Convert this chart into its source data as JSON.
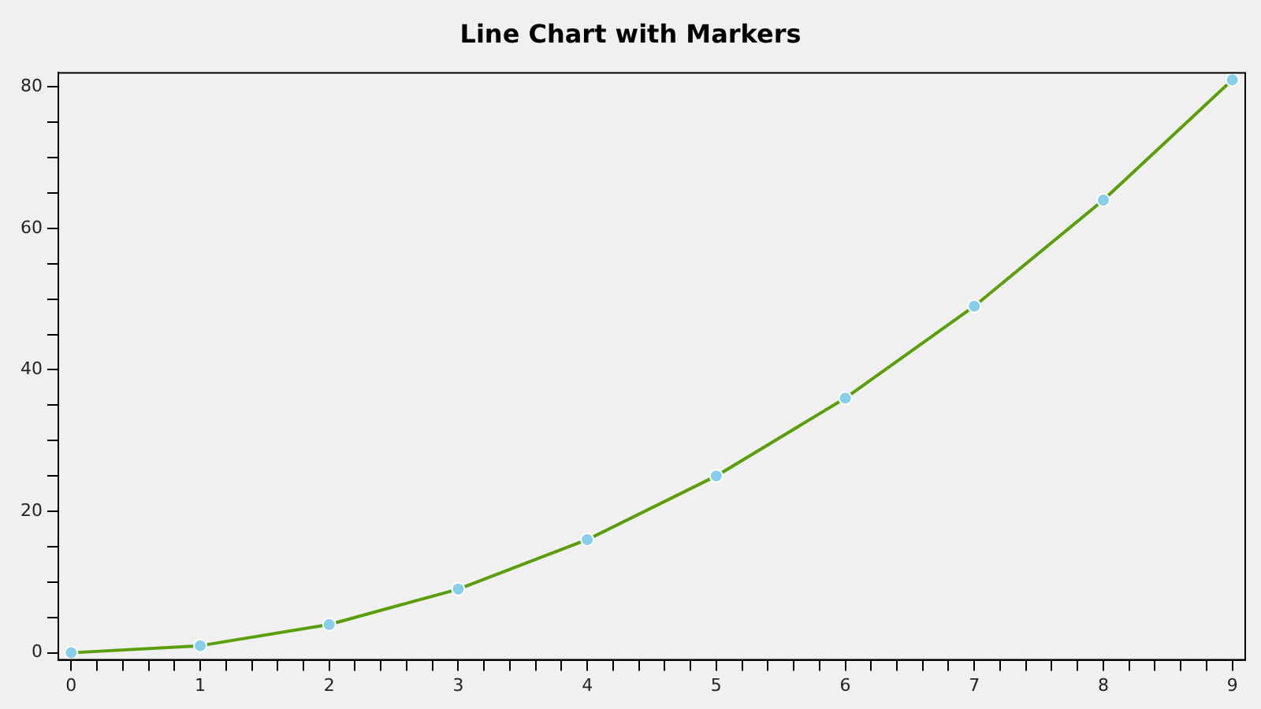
{
  "chart_data": {
    "type": "line",
    "title": "Line Chart with Markers",
    "x": [
      0,
      1,
      2,
      3,
      4,
      5,
      6,
      7,
      8,
      9
    ],
    "series": [
      {
        "color": "#5a9e0a",
        "colors": [
          "#87ceeb",
          "#87ceeb",
          "#87ceeb",
          "#87ceeb",
          "#87ceeb",
          "#87ceeb",
          "#87ceeb",
          "#87ceeb",
          "#87ceeb",
          "#87ceeb"
        ],
        "values": [
          0,
          1,
          4,
          9,
          16,
          25,
          36,
          49,
          64,
          81
        ]
      }
    ],
    "xlim": [
      -0.1,
      9.1
    ],
    "xticks": [
      0,
      {
        "value": 0.2,
        "label": null
      },
      {
        "value": 0.4,
        "label": null
      },
      {
        "value": 0.6,
        "label": null
      },
      {
        "value": 0.8,
        "label": null
      },
      1,
      {
        "value": 1.2,
        "label": null
      },
      {
        "value": 1.4,
        "label": null
      },
      {
        "value": 1.6,
        "label": null
      },
      {
        "value": 1.8,
        "label": null
      },
      2,
      {
        "value": 2.2,
        "label": null
      },
      {
        "value": 2.4,
        "label": null
      },
      {
        "value": 2.6,
        "label": null
      },
      {
        "value": 2.8,
        "label": null
      },
      3,
      {
        "value": 3.2,
        "label": null
      },
      {
        "value": 3.4,
        "label": null
      },
      {
        "value": 3.6,
        "label": null
      },
      {
        "value": 3.8,
        "label": null
      },
      4,
      {
        "value": 4.2,
        "label": null
      },
      {
        "value": 4.4,
        "label": null
      },
      {
        "value": 4.6,
        "label": null
      },
      {
        "value": 4.8,
        "label": null
      },
      5,
      {
        "value": 5.2,
        "label": null
      },
      {
        "value": 5.4,
        "label": null
      },
      {
        "value": 5.6,
        "label": null
      },
      {
        "value": 5.8,
        "label": null
      },
      6,
      {
        "value": 6.2,
        "label": null
      },
      {
        "value": 6.4,
        "label": null
      },
      {
        "value": 6.6,
        "label": null
      },
      {
        "value": 6.8,
        "label": null
      },
      7,
      {
        "value": 7.2,
        "label": null
      },
      {
        "value": 7.4,
        "label": null
      },
      {
        "value": 7.6,
        "label": null
      },
      {
        "value": 7.8,
        "label": null
      },
      8,
      {
        "value": 8.2,
        "label": null
      },
      {
        "value": 8.4,
        "label": null
      },
      {
        "value": 8.6,
        "label": null
      },
      {
        "value": 8.8,
        "label": null
      },
      9
    ],
    "ylim": [
      -1,
      82
    ],
    "yticks": [
      0,
      {
        "value": 5,
        "label": null
      },
      {
        "value": 10,
        "label": null
      },
      {
        "value": 15,
        "label": null
      },
      20,
      {
        "value": 25,
        "label": null
      },
      {
        "value": 30,
        "label": null
      },
      {
        "value": 35,
        "label": null
      },
      40,
      {
        "value": 45,
        "label": null
      },
      {
        "value": 50,
        "label": null
      },
      {
        "value": 55,
        "label": null
      },
      60,
      {
        "value": 65,
        "label": null
      },
      {
        "value": 70,
        "label": null
      },
      {
        "value": 75,
        "label": null
      },
      80
    ],
    "grid": false,
    "legend": false,
    "marker": "circle",
    "line_style": "solid"
  }
}
